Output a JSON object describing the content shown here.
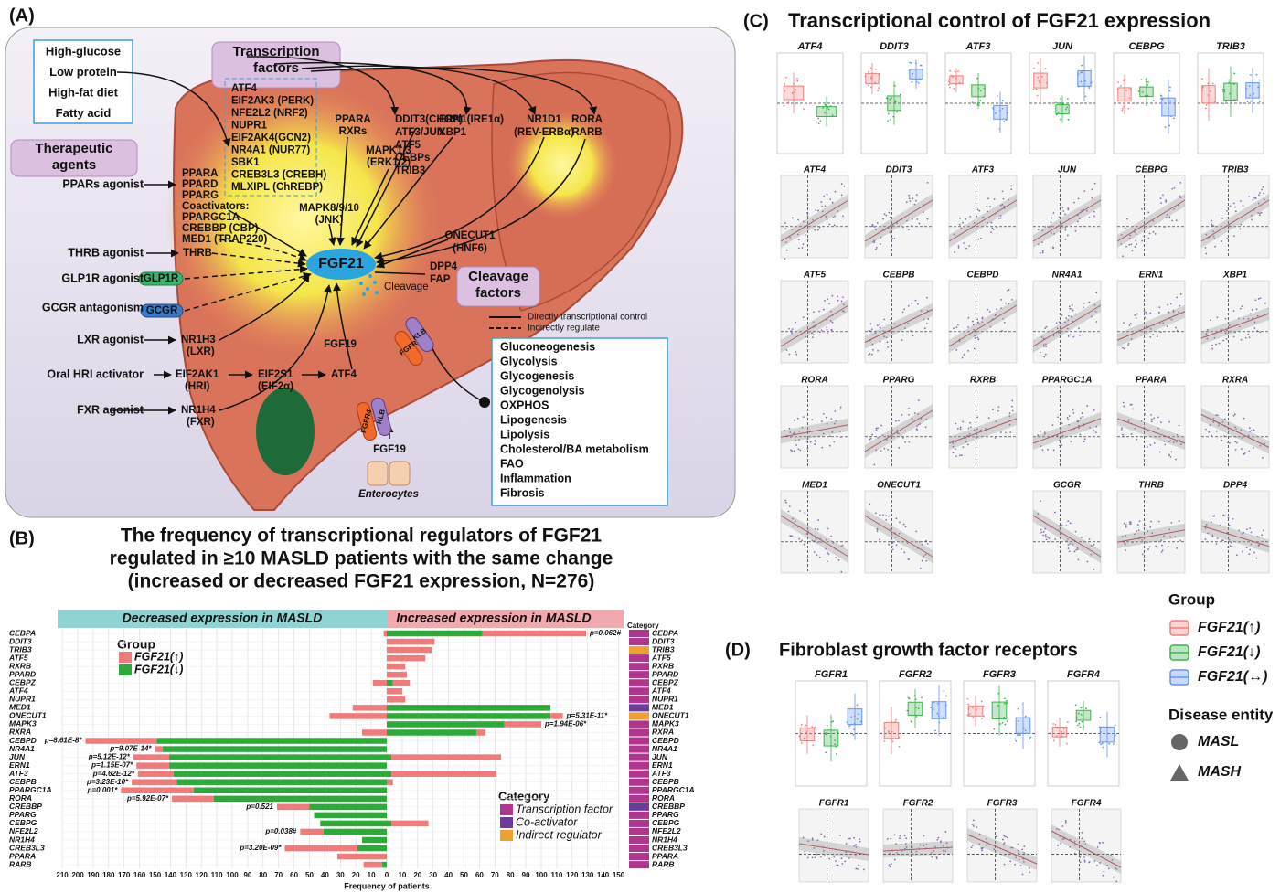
{
  "panel_a": {
    "label": "(A)",
    "inputs": [
      "High-glucose",
      "Low protein",
      "High-fat diet",
      "Fatty acid"
    ],
    "tf_title": [
      "Transcription",
      "factors"
    ],
    "tf_list": [
      "ATF4",
      "EIF2AK3 (PERK)",
      "NFE2L2 (NRF2)",
      "NUPR1",
      "EIF2AK4(GCN2)",
      "NR4A1 (NUR77)",
      "SBK1",
      "CREB3L3 (CREBH)",
      "MLXIPL (ChREBP)"
    ],
    "agents_title": [
      "Therapeutic",
      "agents"
    ],
    "agents": [
      "PPARs agonist",
      "THRB agonist",
      "GLP1R agonist",
      "GCGR antagonism",
      "LXR agonist",
      "Oral HRI activator",
      "FXR agonist"
    ],
    "ppar_list": [
      "PPARA",
      "PPARD",
      "PPARG",
      "Coactivators:",
      "PPARGC1A",
      "CREBBP (CBP)",
      "MED1 (TRAP220)"
    ],
    "nodes": [
      "THRB",
      "GLP1R",
      "GCGR",
      "NR1H3",
      "(LXR)",
      "EIF2AK1",
      "(HRI)",
      "EIF2S1",
      "(EIF2α)",
      "ATF4",
      "NR1H4",
      "(FXR)",
      "PPARA",
      "RXRs",
      "MAPK1/3",
      "(ERK1/2)",
      "MAPK8/9/10",
      "(JNK)",
      "DDIT3(CHOP)",
      "ATF3/JUN",
      "ATF5",
      "CEBPs",
      "TRIB3",
      "ERN1(IRE1α)",
      "XBP1",
      "NR1D1",
      "(REV-ERBα)",
      "RORA",
      "RARB",
      "ONECUT1",
      "(HNF6)",
      "DPP4",
      "FAP",
      "Cleavage",
      "FGF21",
      "FGF19",
      "KLB",
      "FGFR",
      "KLB",
      "FGFR4",
      "FGF19",
      "Enterocytes"
    ],
    "cleavage_title": [
      "Cleavage",
      "factors"
    ],
    "line_legend": [
      "Directly transcriptional control",
      "Indirectly regulate"
    ],
    "functions": [
      "Gluconeogenesis",
      "Glycolysis",
      "Glycogenesis",
      "Glycogenolysis",
      "OXPHOS",
      "Lipogenesis",
      "Lipolysis",
      "Cholesterol/BA metabolism",
      "FAO",
      "Inflammation",
      "Fibrosis"
    ]
  },
  "chart_data": {
    "type": "bar",
    "panel_label": "(B)",
    "title": [
      "The frequency of transcriptional regulators of FGF21",
      "regulated in ≥10 MASLD patients with the same change",
      "(increased or decreased FGF21 expression, N=276)"
    ],
    "left_header": "Decreased expression in MASLD",
    "right_header": "Increased expression in MASLD",
    "category_header": "Category",
    "xlabel": "Frequency of patients",
    "xlim_left": [
      0,
      210
    ],
    "xlim_right": [
      0,
      150
    ],
    "xticks_left": [
      0,
      10,
      20,
      30,
      40,
      50,
      60,
      70,
      80,
      90,
      100,
      110,
      120,
      130,
      140,
      150,
      160,
      170,
      180,
      190,
      200,
      210
    ],
    "xticks_right": [
      10,
      20,
      30,
      40,
      50,
      60,
      70,
      80,
      90,
      100,
      110,
      120,
      130,
      140,
      150
    ],
    "grid": true,
    "categories": [
      "CEBPA",
      "DDIT3",
      "TRIB3",
      "ATF5",
      "RXRB",
      "PPARD",
      "CEBPZ",
      "ATF4",
      "NUPR1",
      "MED1",
      "ONECUT1",
      "MAPK3",
      "RXRA",
      "CEBPD",
      "NR4A1",
      "JUN",
      "ERN1",
      "ATF3",
      "CEBPB",
      "PPARGC1A",
      "RORA",
      "CREBBP",
      "PPARG",
      "CEBPG",
      "NFE2L2",
      "NR1H4",
      "CREB3L3",
      "PPARA",
      "RARB"
    ],
    "legend_title": "Group",
    "series": [
      {
        "name": "FGF21(↑)",
        "color": "#ef7b7b",
        "decreased": [
          2,
          null,
          null,
          null,
          null,
          null,
          9,
          null,
          null,
          22,
          37,
          null,
          16,
          46,
          5,
          23,
          21,
          23,
          29,
          47,
          27,
          21,
          null,
          null,
          15,
          null,
          47,
          32,
          12
        ],
        "increased": [
          67,
          31,
          29,
          25,
          12,
          13,
          11,
          10,
          12,
          null,
          8,
          24,
          6,
          null,
          null,
          71,
          null,
          68,
          4,
          null,
          null,
          null,
          null,
          24,
          null,
          null,
          null,
          null,
          null
        ]
      },
      {
        "name": "FGF21(↓)",
        "color": "#2eaa3a",
        "decreased": [
          null,
          null,
          null,
          null,
          null,
          null,
          null,
          null,
          null,
          null,
          null,
          null,
          null,
          149,
          145,
          141,
          141,
          138,
          136,
          125,
          112,
          50,
          47,
          43,
          41,
          16,
          19,
          null,
          3
        ],
        "increased": [
          62,
          null,
          null,
          null,
          null,
          null,
          4,
          null,
          null,
          106,
          106,
          76,
          58,
          null,
          null,
          3,
          null,
          3,
          null,
          null,
          null,
          null,
          null,
          3,
          null,
          null,
          null,
          null,
          null
        ]
      }
    ],
    "p_labels": [
      "p=0.062#",
      null,
      null,
      null,
      null,
      null,
      null,
      null,
      null,
      null,
      "p=5.31E-11*",
      "p=1.94E-06*",
      null,
      "p=8.61E-8*",
      "p=9.07E-14*",
      "p=5.12E-12*",
      "p=1.15E-07*",
      "p=4.62E-12*",
      "p=3.23E-10*",
      "p=0.001*",
      "p=5.92E-07*",
      "p=0.521",
      null,
      null,
      "p=0.038#",
      null,
      "p=3.20E-09*",
      null,
      null
    ],
    "category_legend": {
      "title": "Category",
      "items": [
        {
          "name": "Transcription factor",
          "color": "#b0358e"
        },
        {
          "name": "Co-activator",
          "color": "#6c3c9c"
        },
        {
          "name": "Indirect regulator",
          "color": "#f0a030"
        }
      ]
    },
    "category_colors": [
      "#b0358e",
      "#b0358e",
      "#f0a030",
      "#b0358e",
      "#b0358e",
      "#b0358e",
      "#b0358e",
      "#b0358e",
      "#b0358e",
      "#6c3c9c",
      "#f0a030",
      "#b0358e",
      "#b0358e",
      "#b0358e",
      "#b0358e",
      "#b0358e",
      "#b0358e",
      "#b0358e",
      "#b0358e",
      "#b0358e",
      "#b0358e",
      "#6c3c9c",
      "#b0358e",
      "#b0358e",
      "#b0358e",
      "#b0358e",
      "#b0358e",
      "#b0358e",
      "#b0358e"
    ]
  },
  "panel_c": {
    "label": "(C)",
    "title": "Transcriptional control of FGF21 expression",
    "box_genes": [
      "ATF4",
      "DDIT3",
      "ATF3",
      "JUN",
      "CEBPG",
      "TRIB3"
    ],
    "scatter_rows": [
      [
        "ATF4",
        "DDIT3",
        "ATF3",
        "JUN",
        "CEBPG",
        "TRIB3"
      ],
      [
        "ATF5",
        "CEBPB",
        "CEBPD",
        "NR4A1",
        "ERN1",
        "XBP1"
      ],
      [
        "RORA",
        "PPARG",
        "RXRB",
        "PPARGC1A",
        "PPARA",
        "RXRA"
      ],
      [
        "MED1",
        "ONECUT1",
        "GCGR",
        "THRB",
        "DPP4"
      ]
    ]
  },
  "panel_d": {
    "label": "(D)",
    "title": "Fibroblast growth factor receptors",
    "genes": [
      "FGFR1",
      "FGFR2",
      "FGFR3",
      "FGFR4"
    ]
  },
  "legend": {
    "group_title": "Group",
    "groups": [
      {
        "name": "FGF21(↑)",
        "color": "#f08080"
      },
      {
        "name": "FGF21(↓)",
        "color": "#3cb44b"
      },
      {
        "name": "FGF21(↔)",
        "color": "#6495ed"
      }
    ],
    "entity_title": "Disease entity",
    "entities": [
      "MASL",
      "MASH"
    ]
  }
}
